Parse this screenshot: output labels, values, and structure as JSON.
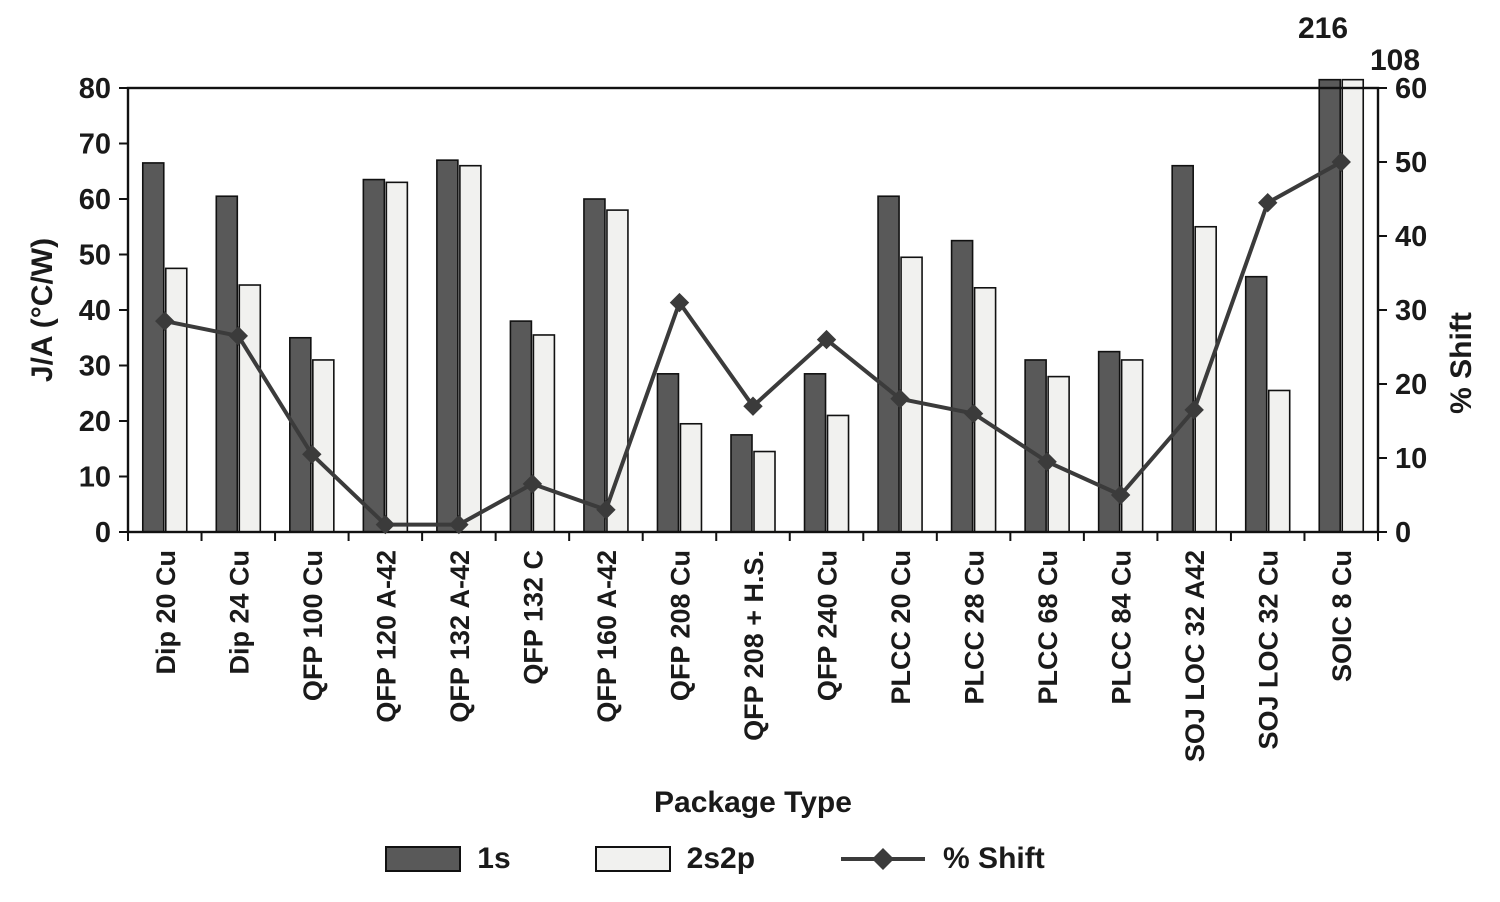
{
  "chart_data": {
    "type": "bar",
    "title": "",
    "xlabel": "Package Type",
    "ylabel_left": "J/A (°C/W)",
    "ylabel_right": "% Shift",
    "ylim_left": [
      0,
      80
    ],
    "ylim_right": [
      0,
      60
    ],
    "ytick_step_left": 10,
    "ytick_step_right": 10,
    "grid": false,
    "legend_position": "bottom",
    "categories": [
      "Dip 20 Cu",
      "Dip 24 Cu",
      "QFP 100 Cu",
      "QFP 120 A-42",
      "QFP 132 A-42",
      "QFP 132 C",
      "QFP 160 A-42",
      "QFP 208 Cu",
      "QFP 208 + H.S.",
      "QFP 240 Cu",
      "PLCC 20 Cu",
      "PLCC 28 Cu",
      "PLCC 68 Cu",
      "PLCC 84 Cu",
      "SOJ LOC 32 A42",
      "SOJ LOC 32 Cu",
      "SOIC 8 Cu"
    ],
    "series": [
      {
        "name": "1s",
        "type": "bar",
        "axis": "left",
        "color": "#595959",
        "values": [
          66.5,
          60.5,
          35,
          63.5,
          67,
          38,
          60,
          28.5,
          17.5,
          28.5,
          60.5,
          52.5,
          31,
          32.5,
          66,
          46,
          216
        ]
      },
      {
        "name": "2s2p",
        "type": "bar",
        "axis": "left",
        "color": "#f1f1ef",
        "values": [
          47.5,
          44.5,
          31,
          63,
          66,
          35.5,
          58,
          19.5,
          14.5,
          21,
          49.5,
          44,
          28,
          31,
          55,
          25.5,
          108
        ]
      },
      {
        "name": "% Shift",
        "type": "line",
        "axis": "right",
        "color": "#3b3b3b",
        "values": [
          28.5,
          26.5,
          10.5,
          1,
          1,
          6.5,
          3,
          31,
          17,
          26,
          18,
          16,
          9.5,
          5,
          16.5,
          44.5,
          50
        ]
      }
    ],
    "annotations": [
      {
        "text": "216",
        "category": "SOIC 8 Cu",
        "series": "1s"
      },
      {
        "text": "108",
        "category": "SOIC 8 Cu",
        "series": "2s2p"
      }
    ]
  },
  "colors": {
    "axis": "#111111",
    "text": "#1a1a1a",
    "background": "#ffffff"
  }
}
